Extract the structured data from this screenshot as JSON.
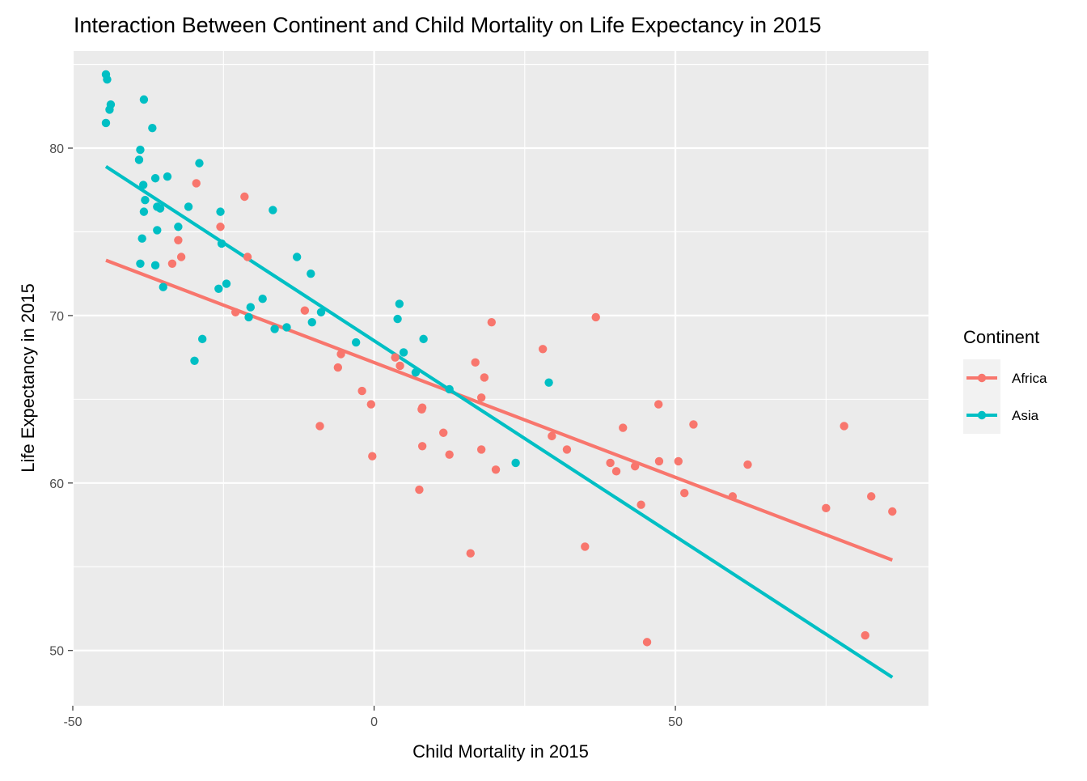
{
  "chart_data": {
    "type": "scatter",
    "title": "Interaction Between Continent and Child Mortality on Life Expectancy in 2015",
    "xlabel": "Child Mortality in 2015",
    "ylabel": "Life Expectancy in 2015",
    "xlim": [
      -50,
      92
    ],
    "ylim": [
      46.7,
      85.8
    ],
    "x_ticks": [
      -50,
      0,
      50
    ],
    "y_ticks": [
      50,
      60,
      70,
      80
    ],
    "grid": true,
    "legend": {
      "title": "Continent",
      "position": "right"
    },
    "series": [
      {
        "name": "Africa",
        "color": "#F8766D",
        "points": [
          [
            -29.5,
            77.9
          ],
          [
            -21.5,
            77.1
          ],
          [
            -25.5,
            75.3
          ],
          [
            -32.5,
            74.5
          ],
          [
            -32,
            73.5
          ],
          [
            -21,
            73.5
          ],
          [
            -33.5,
            73.1
          ],
          [
            -23,
            70.2
          ],
          [
            -11.5,
            70.3
          ],
          [
            -5.5,
            67.7
          ],
          [
            -6,
            66.9
          ],
          [
            -2,
            65.5
          ],
          [
            -0.5,
            64.7
          ],
          [
            -0.3,
            61.6
          ],
          [
            -9,
            63.4
          ],
          [
            3.5,
            67.5
          ],
          [
            4.3,
            67.0
          ],
          [
            8,
            64.5
          ],
          [
            7.9,
            64.4
          ],
          [
            8,
            62.2
          ],
          [
            7.5,
            59.6
          ],
          [
            11.5,
            63.0
          ],
          [
            12.5,
            61.7
          ],
          [
            16,
            55.8
          ],
          [
            16.8,
            67.2
          ],
          [
            17.8,
            65.1
          ],
          [
            18.3,
            66.3
          ],
          [
            19.5,
            69.6
          ],
          [
            17.8,
            62.0
          ],
          [
            20.2,
            60.8
          ],
          [
            28,
            68.0
          ],
          [
            29.5,
            62.8
          ],
          [
            32,
            62.0
          ],
          [
            35,
            56.2
          ],
          [
            36.8,
            69.9
          ],
          [
            39.2,
            61.2
          ],
          [
            40.2,
            60.7
          ],
          [
            41.3,
            63.3
          ],
          [
            43.3,
            61.0
          ],
          [
            44.3,
            58.7
          ],
          [
            45.3,
            50.5
          ],
          [
            47.2,
            64.7
          ],
          [
            47.3,
            61.3
          ],
          [
            50.5,
            61.3
          ],
          [
            51.5,
            59.4
          ],
          [
            53,
            63.5
          ],
          [
            59.5,
            59.2
          ],
          [
            62,
            61.1
          ],
          [
            75,
            58.5
          ],
          [
            78,
            63.4
          ],
          [
            81.5,
            50.9
          ],
          [
            82.5,
            59.2
          ],
          [
            86,
            58.3
          ]
        ],
        "trend": [
          [
            -44.5,
            73.3
          ],
          [
            86,
            55.4
          ]
        ]
      },
      {
        "name": "Asia",
        "color": "#00BFC4",
        "points": [
          [
            -44.5,
            84.4
          ],
          [
            -44.3,
            84.1
          ],
          [
            -43.7,
            82.6
          ],
          [
            -43.9,
            82.3
          ],
          [
            -38.2,
            82.9
          ],
          [
            -44.5,
            81.5
          ],
          [
            -36.8,
            81.2
          ],
          [
            -38.8,
            79.9
          ],
          [
            -39,
            79.3
          ],
          [
            -29,
            79.1
          ],
          [
            -38.3,
            77.8
          ],
          [
            -36.3,
            78.2
          ],
          [
            -34.3,
            78.3
          ],
          [
            -38,
            76.9
          ],
          [
            -36,
            76.5
          ],
          [
            -35.5,
            76.4
          ],
          [
            -38.2,
            76.2
          ],
          [
            -30.8,
            76.5
          ],
          [
            -25.5,
            76.2
          ],
          [
            -16.8,
            76.3
          ],
          [
            -36,
            75.1
          ],
          [
            -32.5,
            75.3
          ],
          [
            -38.5,
            74.6
          ],
          [
            -25.3,
            74.3
          ],
          [
            -38.8,
            73.1
          ],
          [
            -36.3,
            73.0
          ],
          [
            -12.8,
            73.5
          ],
          [
            -10.5,
            72.5
          ],
          [
            -35,
            71.7
          ],
          [
            -24.5,
            71.9
          ],
          [
            -25.8,
            71.6
          ],
          [
            -18.5,
            71.0
          ],
          [
            -20.5,
            70.5
          ],
          [
            -20.8,
            69.9
          ],
          [
            -16.5,
            69.2
          ],
          [
            -14.5,
            69.3
          ],
          [
            -10.3,
            69.6
          ],
          [
            -8.8,
            70.2
          ],
          [
            -28.5,
            68.6
          ],
          [
            -29.8,
            67.3
          ],
          [
            -3,
            68.4
          ],
          [
            4.2,
            70.7
          ],
          [
            3.9,
            69.8
          ],
          [
            8.2,
            68.6
          ],
          [
            4.9,
            67.8
          ],
          [
            6.9,
            66.6
          ],
          [
            12.5,
            65.6
          ],
          [
            23.5,
            61.2
          ],
          [
            29,
            66.0
          ]
        ],
        "trend": [
          [
            -44.5,
            78.9
          ],
          [
            86,
            48.4
          ]
        ]
      }
    ]
  }
}
